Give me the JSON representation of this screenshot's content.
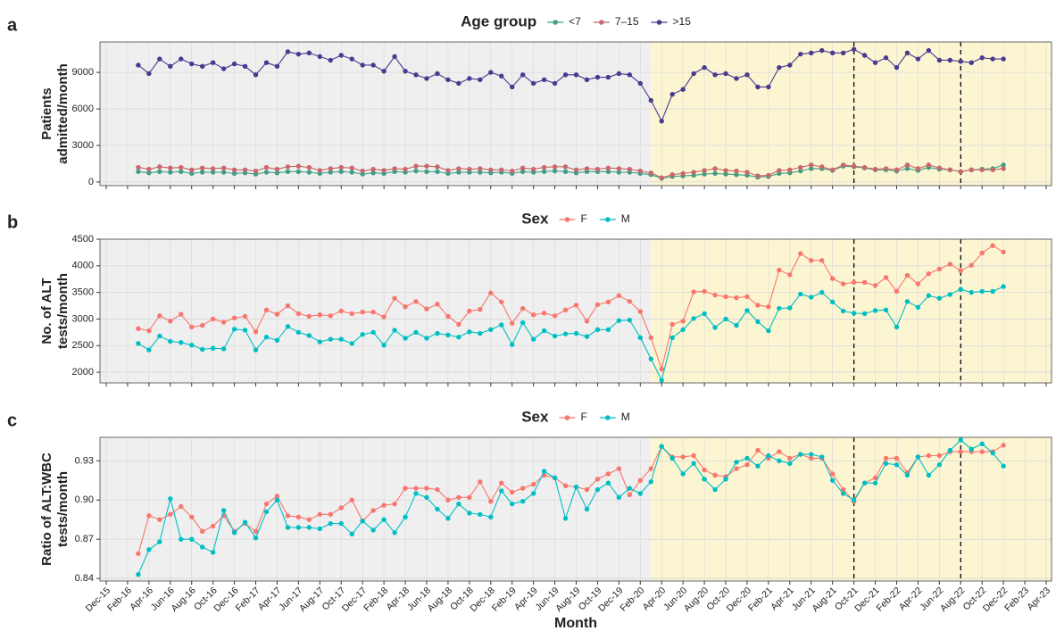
{
  "chart_data": [
    {
      "type": "line",
      "panel_label": "a",
      "legend_title": "Age group",
      "legend": "top",
      "ylabel": [
        "Patients",
        "admitted/month"
      ],
      "x": [
        "Mar-16",
        "Apr-16",
        "May-16",
        "Jun-16",
        "Jul-16",
        "Aug-16",
        "Sep-16",
        "Oct-16",
        "Nov-16",
        "Dec-16",
        "Jan-17",
        "Feb-17",
        "Mar-17",
        "Apr-17",
        "May-17",
        "Jun-17",
        "Jul-17",
        "Aug-17",
        "Sep-17",
        "Oct-17",
        "Nov-17",
        "Dec-17",
        "Jan-18",
        "Feb-18",
        "Mar-18",
        "Apr-18",
        "May-18",
        "Jun-18",
        "Jul-18",
        "Aug-18",
        "Sep-18",
        "Oct-18",
        "Nov-18",
        "Dec-18",
        "Jan-19",
        "Feb-19",
        "Mar-19",
        "Apr-19",
        "May-19",
        "Jun-19",
        "Jul-19",
        "Aug-19",
        "Sep-19",
        "Oct-19",
        "Nov-19",
        "Dec-19",
        "Jan-20",
        "Feb-20",
        "Mar-20",
        "Apr-20",
        "May-20",
        "Jun-20",
        "Jul-20",
        "Aug-20",
        "Sep-20",
        "Oct-20",
        "Nov-20",
        "Dec-20",
        "Jan-21",
        "Feb-21",
        "Mar-21",
        "Apr-21",
        "May-21",
        "Jun-21",
        "Jul-21",
        "Aug-21",
        "Sep-21",
        "Oct-21",
        "Nov-21",
        "Dec-21",
        "Jan-22",
        "Feb-22",
        "Mar-22",
        "Apr-22",
        "May-22",
        "Jun-22",
        "Jul-22",
        "Aug-22",
        "Sep-22",
        "Oct-22",
        "Nov-22",
        "Dec-22"
      ],
      "series": [
        {
          "name": "<7",
          "color": "#3f9f86",
          "values": [
            850,
            750,
            850,
            800,
            850,
            700,
            800,
            800,
            800,
            700,
            750,
            650,
            800,
            750,
            850,
            850,
            800,
            700,
            800,
            850,
            800,
            650,
            750,
            700,
            850,
            800,
            900,
            850,
            850,
            700,
            800,
            800,
            800,
            750,
            800,
            700,
            850,
            800,
            850,
            900,
            850,
            750,
            850,
            850,
            850,
            800,
            800,
            700,
            600,
            300,
            450,
            500,
            550,
            650,
            700,
            650,
            600,
            550,
            400,
            450,
            700,
            750,
            900,
            1100,
            1100,
            950,
            1300,
            1250,
            1150,
            1000,
            1000,
            900,
            1100,
            950,
            1200,
            1050,
            1000,
            850,
            1000,
            1050,
            1100,
            1400
          ]
        },
        {
          "name": "7–15",
          "color": "#c8686c",
          "values": [
            1200,
            1050,
            1250,
            1150,
            1200,
            1000,
            1150,
            1100,
            1150,
            1000,
            1000,
            900,
            1200,
            1050,
            1250,
            1300,
            1200,
            950,
            1100,
            1200,
            1150,
            900,
            1050,
            950,
            1100,
            1050,
            1300,
            1300,
            1250,
            950,
            1100,
            1050,
            1100,
            1000,
            1000,
            900,
            1150,
            1050,
            1200,
            1250,
            1250,
            1000,
            1100,
            1050,
            1150,
            1100,
            1050,
            900,
            750,
            350,
            600,
            700,
            800,
            950,
            1100,
            950,
            900,
            800,
            500,
            550,
            950,
            1000,
            1200,
            1400,
            1250,
            1000,
            1400,
            1300,
            1200,
            1050,
            1100,
            1000,
            1400,
            1100,
            1400,
            1150,
            1000,
            850,
            1000,
            1000,
            1000,
            1100
          ]
        },
        {
          "name": ">15",
          "color": "#473a8f",
          "values": [
            9600,
            8900,
            10100,
            9500,
            10100,
            9700,
            9500,
            9800,
            9300,
            9700,
            9500,
            8800,
            9800,
            9500,
            10700,
            10500,
            10600,
            10300,
            10000,
            10400,
            10100,
            9600,
            9600,
            9100,
            10300,
            9100,
            8800,
            8500,
            8900,
            8400,
            8100,
            8500,
            8400,
            9000,
            8700,
            7800,
            8800,
            8100,
            8400,
            8100,
            8800,
            8800,
            8400,
            8600,
            8600,
            8900,
            8800,
            8100,
            6700,
            5000,
            7200,
            7600,
            8900,
            9400,
            8800,
            8900,
            8500,
            8800,
            7800,
            7800,
            9400,
            9600,
            10500,
            10600,
            10800,
            10600,
            10600,
            10900,
            10400,
            9800,
            10200,
            9400,
            10600,
            10100,
            10800,
            10000,
            10000,
            9900,
            9800,
            10200,
            10100,
            10100
          ]
        }
      ],
      "ylim": [
        -300,
        11500
      ],
      "yticks": [
        0,
        3000,
        6000,
        9000
      ],
      "grid": true,
      "background": "#efefef",
      "shade_from": "Mar-20",
      "shade_color": "#fcf5d2",
      "vlines": [
        "Oct-21",
        "Aug-22"
      ]
    },
    {
      "type": "line",
      "panel_label": "b",
      "legend_title": "Sex",
      "legend": "top",
      "ylabel": [
        "No. of ALT",
        "tests/month"
      ],
      "x": [
        "Mar-16",
        "Apr-16",
        "May-16",
        "Jun-16",
        "Jul-16",
        "Aug-16",
        "Sep-16",
        "Oct-16",
        "Nov-16",
        "Dec-16",
        "Jan-17",
        "Feb-17",
        "Mar-17",
        "Apr-17",
        "May-17",
        "Jun-17",
        "Jul-17",
        "Aug-17",
        "Sep-17",
        "Oct-17",
        "Nov-17",
        "Dec-17",
        "Jan-18",
        "Feb-18",
        "Mar-18",
        "Apr-18",
        "May-18",
        "Jun-18",
        "Jul-18",
        "Aug-18",
        "Sep-18",
        "Oct-18",
        "Nov-18",
        "Dec-18",
        "Jan-19",
        "Feb-19",
        "Mar-19",
        "Apr-19",
        "May-19",
        "Jun-19",
        "Jul-19",
        "Aug-19",
        "Sep-19",
        "Oct-19",
        "Nov-19",
        "Dec-19",
        "Jan-20",
        "Feb-20",
        "Mar-20",
        "Apr-20",
        "May-20",
        "Jun-20",
        "Jul-20",
        "Aug-20",
        "Sep-20",
        "Oct-20",
        "Nov-20",
        "Dec-20",
        "Jan-21",
        "Feb-21",
        "Mar-21",
        "Apr-21",
        "May-21",
        "Jun-21",
        "Jul-21",
        "Aug-21",
        "Sep-21",
        "Oct-21",
        "Nov-21",
        "Dec-21",
        "Jan-22",
        "Feb-22",
        "Mar-22",
        "Apr-22",
        "May-22",
        "Jun-22",
        "Jul-22",
        "Aug-22",
        "Sep-22",
        "Oct-22",
        "Nov-22",
        "Dec-22"
      ],
      "series": [
        {
          "name": "F",
          "color": "#f8766d",
          "values": [
            2820,
            2780,
            3060,
            2960,
            3090,
            2850,
            2880,
            3000,
            2940,
            3020,
            3050,
            2760,
            3170,
            3090,
            3250,
            3100,
            3050,
            3080,
            3060,
            3150,
            3100,
            3130,
            3130,
            3040,
            3390,
            3230,
            3330,
            3190,
            3280,
            3050,
            2900,
            3150,
            3180,
            3490,
            3320,
            2920,
            3200,
            3080,
            3110,
            3060,
            3170,
            3260,
            2960,
            3270,
            3320,
            3440,
            3330,
            3140,
            2650,
            2060,
            2900,
            2960,
            3510,
            3520,
            3450,
            3420,
            3400,
            3420,
            3260,
            3230,
            3920,
            3830,
            4230,
            4100,
            4100,
            3760,
            3660,
            3690,
            3690,
            3630,
            3780,
            3520,
            3820,
            3660,
            3850,
            3940,
            4030,
            3910,
            4010,
            4240,
            4380,
            4260
          ]
        },
        {
          "name": "M",
          "color": "#00bfc4",
          "values": [
            2540,
            2420,
            2680,
            2580,
            2560,
            2510,
            2430,
            2450,
            2440,
            2810,
            2790,
            2420,
            2660,
            2600,
            2860,
            2750,
            2690,
            2570,
            2620,
            2620,
            2540,
            2710,
            2750,
            2510,
            2790,
            2640,
            2750,
            2640,
            2730,
            2700,
            2660,
            2760,
            2730,
            2800,
            2890,
            2520,
            2930,
            2620,
            2780,
            2680,
            2720,
            2730,
            2670,
            2800,
            2800,
            2970,
            2980,
            2650,
            2250,
            1850,
            2650,
            2800,
            3010,
            3100,
            2840,
            3000,
            2880,
            3160,
            2950,
            2780,
            3200,
            3210,
            3470,
            3410,
            3500,
            3320,
            3150,
            3110,
            3100,
            3160,
            3170,
            2850,
            3330,
            3220,
            3440,
            3390,
            3460,
            3560,
            3500,
            3520,
            3520,
            3610
          ]
        }
      ],
      "ylim": [
        1800,
        4500
      ],
      "yticks": [
        2000,
        2500,
        3000,
        3500,
        4000,
        4500
      ],
      "grid": true,
      "background": "#efefef",
      "shade_from": "Mar-20",
      "shade_color": "#fcf5d2",
      "vlines": [
        "Oct-21",
        "Aug-22"
      ]
    },
    {
      "type": "line",
      "panel_label": "c",
      "legend_title": "Sex",
      "legend": "top",
      "ylabel": [
        "Ratio of ALT:WBC",
        "tests/month"
      ],
      "xlabel": "Month",
      "x": [
        "Mar-16",
        "Apr-16",
        "May-16",
        "Jun-16",
        "Jul-16",
        "Aug-16",
        "Sep-16",
        "Oct-16",
        "Nov-16",
        "Dec-16",
        "Jan-17",
        "Feb-17",
        "Mar-17",
        "Apr-17",
        "May-17",
        "Jun-17",
        "Jul-17",
        "Aug-17",
        "Sep-17",
        "Oct-17",
        "Nov-17",
        "Dec-17",
        "Jan-18",
        "Feb-18",
        "Mar-18",
        "Apr-18",
        "May-18",
        "Jun-18",
        "Jul-18",
        "Aug-18",
        "Sep-18",
        "Oct-18",
        "Nov-18",
        "Dec-18",
        "Jan-19",
        "Feb-19",
        "Mar-19",
        "Apr-19",
        "May-19",
        "Jun-19",
        "Jul-19",
        "Aug-19",
        "Sep-19",
        "Oct-19",
        "Nov-19",
        "Dec-19",
        "Jan-20",
        "Feb-20",
        "Mar-20",
        "Apr-20",
        "May-20",
        "Jun-20",
        "Jul-20",
        "Aug-20",
        "Sep-20",
        "Oct-20",
        "Nov-20",
        "Dec-20",
        "Jan-21",
        "Feb-21",
        "Mar-21",
        "Apr-21",
        "May-21",
        "Jun-21",
        "Jul-21",
        "Aug-21",
        "Sep-21",
        "Oct-21",
        "Nov-21",
        "Dec-21",
        "Jan-22",
        "Feb-22",
        "Mar-22",
        "Apr-22",
        "May-22",
        "Jun-22",
        "Jul-22",
        "Aug-22",
        "Sep-22",
        "Oct-22",
        "Nov-22",
        "Dec-22"
      ],
      "series": [
        {
          "name": "F",
          "color": "#f8766d",
          "values": [
            0.859,
            0.888,
            0.885,
            0.889,
            0.895,
            0.887,
            0.876,
            0.88,
            0.888,
            0.876,
            0.882,
            0.876,
            0.897,
            0.903,
            0.888,
            0.887,
            0.885,
            0.889,
            0.889,
            0.894,
            0.9,
            0.884,
            0.892,
            0.896,
            0.897,
            0.909,
            0.909,
            0.909,
            0.908,
            0.9,
            0.902,
            0.902,
            0.914,
            0.899,
            0.913,
            0.906,
            0.909,
            0.912,
            0.919,
            0.917,
            0.911,
            0.91,
            0.908,
            0.916,
            0.92,
            0.924,
            0.904,
            0.915,
            0.924,
            0.941,
            0.933,
            0.933,
            0.934,
            0.923,
            0.919,
            0.918,
            0.924,
            0.927,
            0.938,
            0.932,
            0.937,
            0.932,
            0.935,
            0.932,
            0.932,
            0.92,
            0.908,
            0.899,
            0.913,
            0.917,
            0.932,
            0.932,
            0.921,
            0.933,
            0.934,
            0.934,
            0.937,
            0.937,
            0.937,
            0.937,
            0.937,
            0.942
          ]
        },
        {
          "name": "M",
          "color": "#00bfc4",
          "values": [
            0.843,
            0.862,
            0.868,
            0.901,
            0.87,
            0.87,
            0.864,
            0.86,
            0.892,
            0.875,
            0.883,
            0.871,
            0.891,
            0.9,
            0.879,
            0.879,
            0.879,
            0.878,
            0.882,
            0.882,
            0.874,
            0.884,
            0.877,
            0.885,
            0.875,
            0.887,
            0.905,
            0.902,
            0.893,
            0.886,
            0.897,
            0.89,
            0.889,
            0.887,
            0.907,
            0.897,
            0.899,
            0.905,
            0.922,
            0.917,
            0.886,
            0.91,
            0.893,
            0.908,
            0.913,
            0.902,
            0.909,
            0.905,
            0.914,
            0.941,
            0.932,
            0.92,
            0.928,
            0.916,
            0.908,
            0.916,
            0.929,
            0.932,
            0.926,
            0.934,
            0.93,
            0.928,
            0.935,
            0.935,
            0.933,
            0.915,
            0.905,
            0.9,
            0.913,
            0.913,
            0.928,
            0.927,
            0.919,
            0.933,
            0.919,
            0.927,
            0.938,
            0.946,
            0.939,
            0.943,
            0.936,
            0.926
          ]
        }
      ],
      "ylim": [
        0.838,
        0.948
      ],
      "yticks": [
        0.84,
        0.87,
        {
          "value": 0.9,
          "label": "0.90"
        },
        0.93
      ],
      "grid": true,
      "background": "#efefef",
      "shade_from": "Mar-20",
      "shade_color": "#fcf5d2",
      "vlines": [
        "Oct-21",
        "Aug-22"
      ],
      "xticks": [
        "Dec-15",
        "Feb-16",
        "Apr-16",
        "Jun-16",
        "Aug-16",
        "Oct-16",
        "Dec-16",
        "Feb-17",
        "Apr-17",
        "Jun-17",
        "Aug-17",
        "Oct-17",
        "Dec-17",
        "Feb-18",
        "Apr-18",
        "Jun-18",
        "Aug-18",
        "Oct-18",
        "Dec-18",
        "Feb-19",
        "Apr-19",
        "Jun-19",
        "Aug-19",
        "Oct-19",
        "Dec-19",
        "Feb-20",
        "Apr-20",
        "Jun-20",
        "Aug-20",
        "Oct-20",
        "Dec-20",
        "Feb-21",
        "Apr-21",
        "Jun-21",
        "Aug-21",
        "Oct-21",
        "Dec-21",
        "Feb-22",
        "Apr-22",
        "Jun-22",
        "Aug-22",
        "Oct-22",
        "Dec-22",
        "Feb-23",
        "Apr-23"
      ]
    }
  ]
}
